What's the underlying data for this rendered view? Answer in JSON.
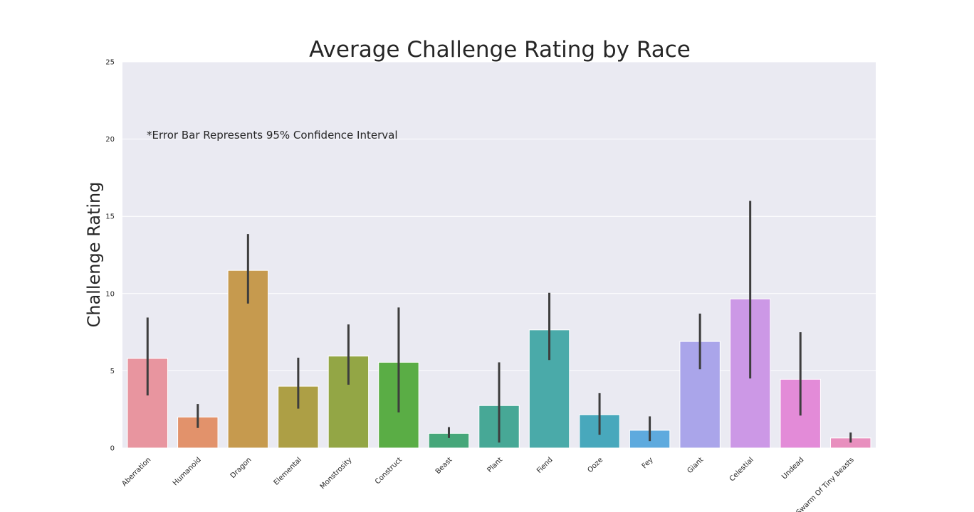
{
  "chart_data": {
    "type": "bar",
    "title": "Average Challenge Rating by Race",
    "ylabel": "Challenge Rating",
    "xlabel": "",
    "annotation": "*Error Bar Represents 95% Confidence Interval",
    "ylim": [
      0,
      25
    ],
    "yticks": [
      0,
      5,
      10,
      15,
      20,
      25
    ],
    "grid": true,
    "categories": [
      "Aberration",
      "Humanoid",
      "Dragon",
      "Elemental",
      "Monstrosity",
      "Construct",
      "Beast",
      "Plant",
      "Fiend",
      "Ooze",
      "Fey",
      "Giant",
      "Celestial",
      "Undead",
      "Swarm Of Tiny Beasts"
    ],
    "values": [
      5.8,
      2.0,
      11.5,
      4.0,
      5.95,
      5.55,
      0.95,
      2.75,
      7.65,
      2.15,
      1.15,
      6.9,
      9.65,
      4.45,
      0.65
    ],
    "ci_low": [
      3.4,
      1.3,
      9.35,
      2.55,
      4.1,
      2.3,
      0.65,
      0.35,
      5.7,
      0.85,
      0.45,
      5.1,
      4.5,
      2.1,
      0.35
    ],
    "ci_high": [
      8.45,
      2.85,
      13.85,
      5.85,
      8.0,
      9.1,
      1.35,
      5.55,
      10.05,
      3.55,
      2.05,
      8.7,
      16.0,
      7.5,
      1.0
    ],
    "colors": [
      "#e8959f",
      "#e2926b",
      "#c69a4e",
      "#ad9f45",
      "#93a645",
      "#5aad45",
      "#46a77a",
      "#47a896",
      "#4aaaa9",
      "#48a8bc",
      "#5eaade",
      "#aaa5ea",
      "#cc98e6",
      "#e38bd8",
      "#e88fbe"
    ],
    "error_color": "#3d3d3d",
    "background": "#eaeaf2"
  }
}
